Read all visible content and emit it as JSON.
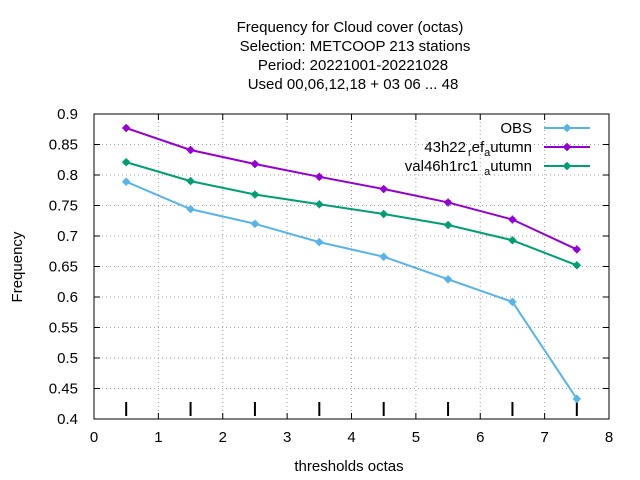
{
  "chart_data": {
    "type": "line",
    "title_lines": [
      "Frequency  for Cloud cover (octas)",
      "Selection: METCOOP    213 stations",
      "Period: 20221001-20221028",
      "Used  00,06,12,18  + 03 06 ... 48"
    ],
    "xlabel": "thresholds octas",
    "ylabel": "Frequency",
    "xlim": [
      0,
      8
    ],
    "ylim": [
      0.4,
      0.9
    ],
    "xticks": [
      "0",
      "1",
      "2",
      "3",
      "4",
      "5",
      "6",
      "7",
      "8"
    ],
    "yticks": [
      "0.4",
      "0.45",
      "0.5",
      "0.55",
      "0.6",
      "0.65",
      "0.7",
      "0.75",
      "0.8",
      "0.85",
      "0.9"
    ],
    "grid": true,
    "legend_position": "top-right",
    "x": [
      0.5,
      1.5,
      2.5,
      3.5,
      4.5,
      5.5,
      6.5,
      7.5
    ],
    "series": [
      {
        "name": "OBS",
        "color": "#56b4e9",
        "values": [
          0.789,
          0.744,
          0.72,
          0.69,
          0.666,
          0.629,
          0.592,
          0.433
        ]
      },
      {
        "name_parts": [
          "43h22",
          "r",
          "ef",
          "a",
          "utumn"
        ],
        "color": "#9400d3",
        "values": [
          0.877,
          0.841,
          0.818,
          0.797,
          0.777,
          0.755,
          0.727,
          0.678
        ]
      },
      {
        "name_parts": [
          "val46h1rc1",
          "a",
          "utumn"
        ],
        "color": "#009e73",
        "values": [
          0.821,
          0.79,
          0.768,
          0.752,
          0.736,
          0.718,
          0.693,
          0.652
        ]
      }
    ],
    "threshold_markers": [
      0.5,
      1.5,
      2.5,
      3.5,
      4.5,
      5.5,
      6.5,
      7.5
    ]
  }
}
